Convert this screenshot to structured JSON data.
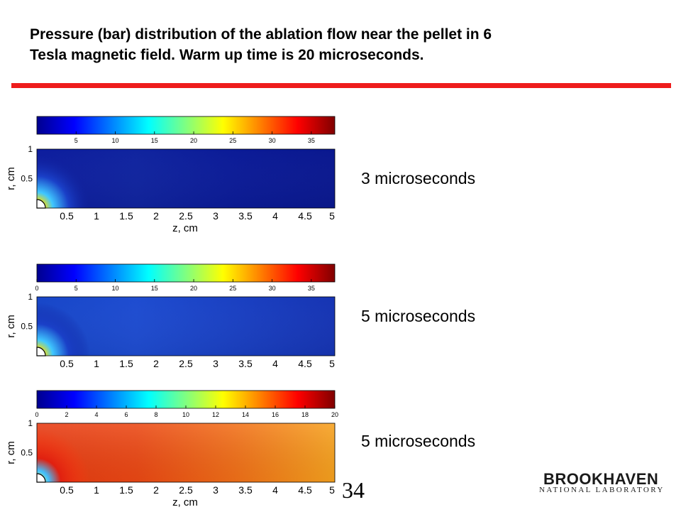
{
  "slide": {
    "title_line1": "Pressure (bar) distribution of the ablation flow near the pellet in 6",
    "title_line2": "Tesla magnetic field. Warm up time is 20 microseconds.",
    "page_number": "34",
    "accent_color": "#ee1c1c"
  },
  "logo": {
    "word": "BROOKHAVEN",
    "subtitle": "NATIONAL LABORATORY"
  },
  "plots": [
    {
      "caption": "3 microseconds",
      "colorbar_ticks": [
        "5",
        "10",
        "15",
        "20",
        "25",
        "30",
        "35"
      ],
      "colorbar_range": [
        0,
        38
      ],
      "r_ticks": [
        "1",
        "0.5"
      ],
      "z_ticks": [
        "0.5",
        "1",
        "1.5",
        "2",
        "2.5",
        "3",
        "3.5",
        "4",
        "4.5",
        "5"
      ],
      "r_label": "r, cm",
      "z_label": "z, cm",
      "field_colors": [
        "#0d1d9e",
        "#10249f",
        "#0b1b97",
        "#0a188f"
      ]
    },
    {
      "caption": "5 microseconds",
      "colorbar_ticks": [
        "0",
        "5",
        "10",
        "15",
        "20",
        "25",
        "30",
        "35"
      ],
      "colorbar_range": [
        0,
        38
      ],
      "r_ticks": [
        "1",
        "0.5"
      ],
      "z_ticks": [
        "0.5",
        "1",
        "1.5",
        "2",
        "2.5",
        "3",
        "3.5",
        "4",
        "4.5",
        "5"
      ],
      "r_label": "r, cm",
      "z_label": "",
      "field_colors": [
        "#1746c8",
        "#1e4cd0",
        "#1a40c2",
        "#1634b3"
      ]
    },
    {
      "caption": "5 microseconds",
      "colorbar_ticks": [
        "0",
        "2",
        "4",
        "6",
        "8",
        "10",
        "12",
        "14",
        "16",
        "18",
        "20"
      ],
      "colorbar_range": [
        0,
        20
      ],
      "r_ticks": [
        "1",
        "0.5"
      ],
      "z_ticks": [
        "0.5",
        "1",
        "1.5",
        "2",
        "2.5",
        "3",
        "3.5",
        "4",
        "4.5",
        "5"
      ],
      "r_label": "r, cm",
      "z_label": "z, cm",
      "field_colors": [
        "#e83a12",
        "#ec4814",
        "#f27018",
        "#f7a21e"
      ]
    }
  ]
}
